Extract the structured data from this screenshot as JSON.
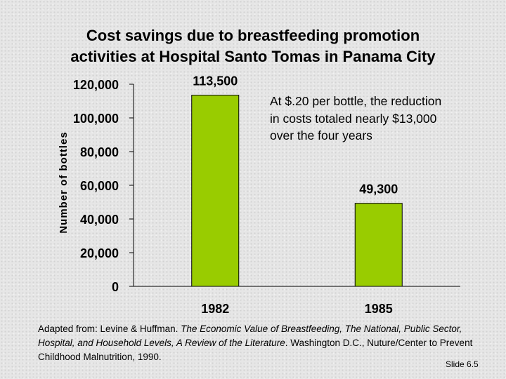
{
  "title_line1": "Cost savings due to breastfeeding promotion",
  "title_line2": "activities at Hospital Santo Tomas in Panama City",
  "annotation": "At $.20 per bottle, the reduction in costs totaled nearly $13,000 over the four years",
  "source": {
    "prefix": "Adapted from: Levine & Huffman. ",
    "italic": "The Economic Value of Breastfeeding, The National, Public Sector, Hospital, and Household Levels, A Review of the Literature",
    "suffix": ". Washington D.C., Nuture/Center to Prevent Childhood Malnutrition, 1990."
  },
  "slide_number": "Slide 6.5",
  "colors": {
    "bar": "#99cc00",
    "bar_edge": "#000000",
    "axis": "#000000"
  },
  "chart_data": {
    "type": "bar",
    "title": "",
    "xlabel": "",
    "ylabel": "Number of bottles",
    "categories": [
      "1982",
      "1985"
    ],
    "values": [
      113500,
      49300
    ],
    "data_labels": [
      "113,500",
      "49,300"
    ],
    "ylim": [
      0,
      120000
    ],
    "yticks": [
      0,
      20000,
      40000,
      60000,
      80000,
      100000,
      120000
    ],
    "ytick_labels": [
      "0",
      "20,000",
      "40,000",
      "60,000",
      "80,000",
      "100,000",
      "120,000"
    ],
    "grid": false,
    "legend": "none"
  }
}
